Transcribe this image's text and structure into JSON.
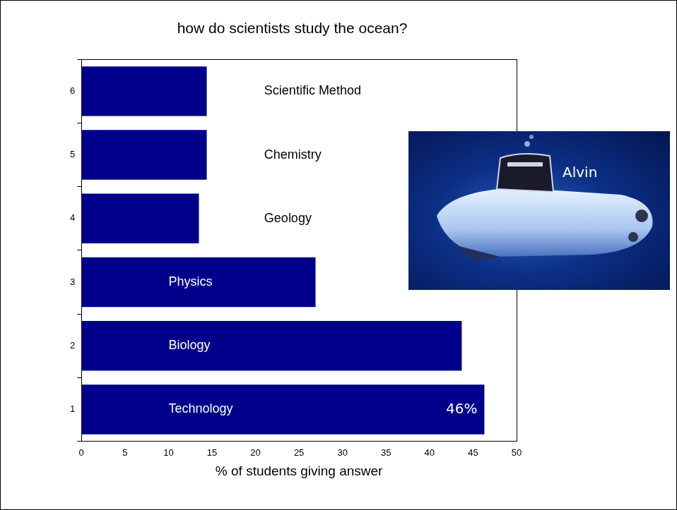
{
  "chart_data": {
    "type": "bar",
    "orientation": "horizontal",
    "title": "how do scientists study the ocean?",
    "x_label": "% of students giving answer",
    "categories": [
      "1",
      "2",
      "3",
      "4",
      "5",
      "6"
    ],
    "bar_labels": [
      "Technology",
      "Biology",
      "Physics",
      "Geology",
      "Chemistry",
      "Scientific Method"
    ],
    "values": [
      46.3,
      43.7,
      26.9,
      13.5,
      14.4,
      14.4
    ],
    "color": "#00008b",
    "xlim": [
      0,
      50
    ],
    "xticks": [
      0,
      5,
      10,
      15,
      20,
      25,
      30,
      35,
      40,
      45,
      50
    ],
    "grid": false,
    "annotations": [
      {
        "text": "46%",
        "category": "1"
      }
    ],
    "inset_photo_caption": "Alvin"
  }
}
